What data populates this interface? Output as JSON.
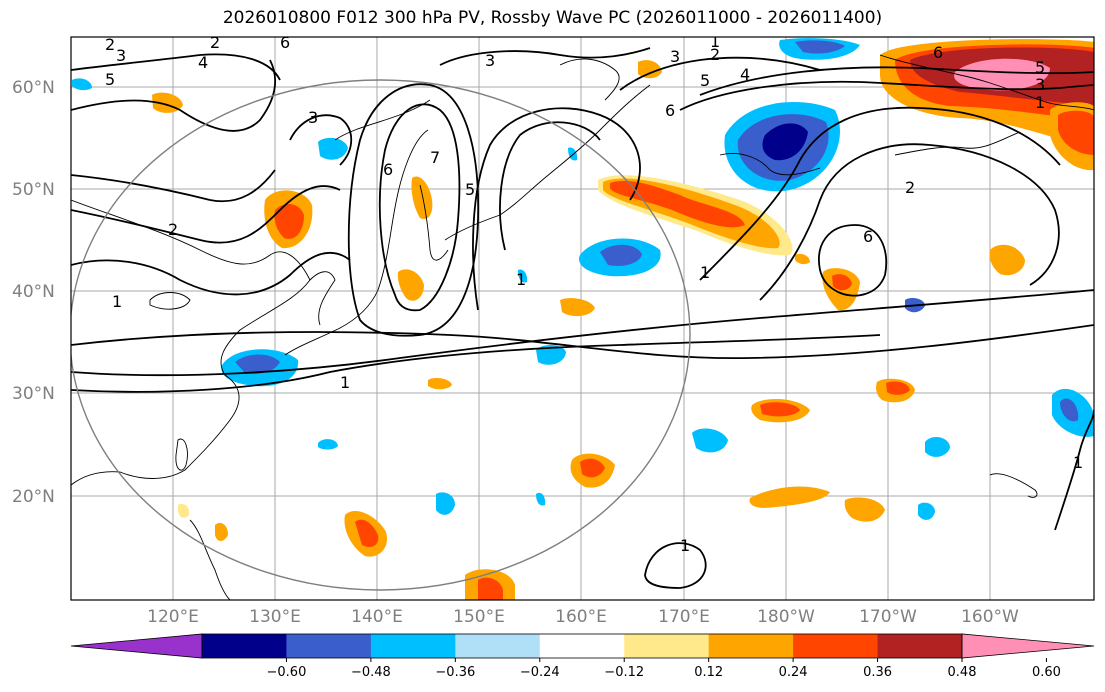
{
  "title": "2026010800 F012 300 hPa PV, Rossby Wave PC (2026011000 - 2026011400)",
  "lat_labels": [
    "60°N",
    "50°N",
    "40°N",
    "30°N",
    "20°N"
  ],
  "lon_labels": [
    "120°E",
    "130°E",
    "140°E",
    "150°E",
    "160°E",
    "170°E",
    "180°W",
    "170°W",
    "160°W"
  ],
  "colorbar": {
    "ticks": [
      "−0.60",
      "−0.48",
      "−0.36",
      "−0.24",
      "−0.12",
      "0.12",
      "0.24",
      "0.36",
      "0.48",
      "0.60"
    ],
    "colors": [
      "#9932cc",
      "#00008b",
      "#3a5fcd",
      "#00bfff",
      "#b0e0f8",
      "#ffffff",
      "#ffe98a",
      "#ffa500",
      "#ff4500",
      "#b22222",
      "#ff8fb5"
    ]
  },
  "contour_labels": [
    "3",
    "5",
    "4",
    "2",
    "2",
    "1",
    "6",
    "3",
    "3",
    "3",
    "2",
    "1",
    "4",
    "5",
    "6",
    "6",
    "5",
    "3",
    "1",
    "7",
    "6",
    "5",
    "2",
    "6",
    "1",
    "2",
    "1",
    "1",
    "1",
    "1"
  ]
}
